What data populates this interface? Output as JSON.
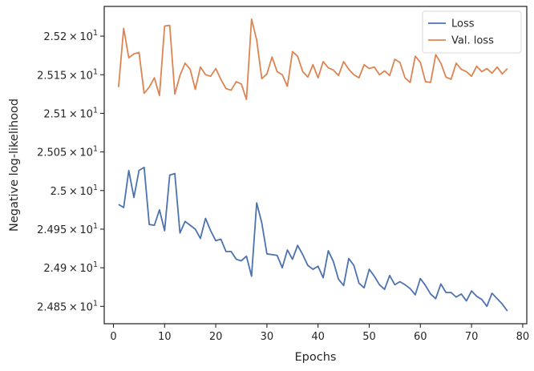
{
  "chart_data": {
    "type": "line",
    "title": "",
    "xlabel": "Epochs",
    "ylabel": "Negative log-likelihood",
    "xlim": [
      -1.8,
      80.8
    ],
    "ylim": [
      24.8275,
      25.2385
    ],
    "xticks": [
      0,
      10,
      20,
      30,
      40,
      50,
      60,
      70,
      80
    ],
    "xtick_labels": [
      "0",
      "10",
      "20",
      "30",
      "40",
      "50",
      "60",
      "70",
      "80"
    ],
    "yticks": [
      24.85,
      24.9,
      24.95,
      25.0,
      25.05,
      25.1,
      25.15,
      25.2
    ],
    "ytick_labels": [
      {
        "mantissa": "2.485",
        "exp": "1"
      },
      {
        "mantissa": "2.49",
        "exp": "1"
      },
      {
        "mantissa": "2.495",
        "exp": "1"
      },
      {
        "mantissa": "2.5",
        "exp": "1"
      },
      {
        "mantissa": "2.505",
        "exp": "1"
      },
      {
        "mantissa": "2.51",
        "exp": "1"
      },
      {
        "mantissa": "2.515",
        "exp": "1"
      },
      {
        "mantissa": "2.52",
        "exp": "1"
      }
    ],
    "tick_times": "×",
    "tick_base": "10",
    "legend_position": "top-right",
    "grid": false,
    "x": [
      1,
      2,
      3,
      4,
      5,
      6,
      7,
      8,
      9,
      10,
      11,
      12,
      13,
      14,
      15,
      16,
      17,
      18,
      19,
      20,
      21,
      22,
      23,
      24,
      25,
      26,
      27,
      28,
      29,
      30,
      31,
      32,
      33,
      34,
      35,
      36,
      37,
      38,
      39,
      40,
      41,
      42,
      43,
      44,
      45,
      46,
      47,
      48,
      49,
      50,
      51,
      52,
      53,
      54,
      55,
      56,
      57,
      58,
      59,
      60,
      61,
      62,
      63,
      64,
      65,
      66,
      67,
      68,
      69,
      70,
      71,
      72,
      73,
      74,
      75,
      76,
      77
    ],
    "series": [
      {
        "name": "Loss",
        "color": "#4c72b0",
        "values": [
          24.982,
          24.978,
          25.026,
          24.991,
          25.026,
          25.03,
          24.956,
          24.955,
          24.975,
          24.948,
          25.02,
          25.022,
          24.945,
          24.96,
          24.955,
          24.95,
          24.938,
          24.964,
          24.948,
          24.935,
          24.937,
          24.921,
          24.921,
          24.911,
          24.909,
          24.915,
          24.889,
          24.984,
          24.958,
          24.918,
          24.917,
          24.916,
          24.9,
          24.923,
          24.911,
          24.929,
          24.917,
          24.903,
          24.898,
          24.902,
          24.887,
          24.922,
          24.908,
          24.885,
          24.877,
          24.912,
          24.903,
          24.88,
          24.874,
          24.898,
          24.889,
          24.878,
          24.872,
          24.89,
          24.878,
          24.882,
          24.878,
          24.873,
          24.865,
          24.886,
          24.877,
          24.866,
          24.86,
          24.879,
          24.868,
          24.868,
          24.862,
          24.866,
          24.857,
          24.87,
          24.863,
          24.859,
          24.85,
          24.867,
          24.86,
          24.853,
          24.844
        ]
      },
      {
        "name": "Val. loss",
        "color": "#dd8452",
        "values": [
          25.134,
          25.21,
          25.172,
          25.177,
          25.179,
          25.126,
          25.134,
          25.146,
          25.123,
          25.213,
          25.214,
          25.125,
          25.149,
          25.165,
          25.157,
          25.131,
          25.16,
          25.15,
          25.148,
          25.158,
          25.144,
          25.132,
          25.13,
          25.141,
          25.138,
          25.118,
          25.222,
          25.195,
          25.145,
          25.151,
          25.173,
          25.154,
          25.15,
          25.135,
          25.18,
          25.174,
          25.154,
          25.147,
          25.163,
          25.146,
          25.167,
          25.159,
          25.156,
          25.149,
          25.167,
          25.157,
          25.15,
          25.146,
          25.163,
          25.158,
          25.16,
          25.15,
          25.155,
          25.149,
          25.17,
          25.166,
          25.146,
          25.14,
          25.174,
          25.166,
          25.141,
          25.14,
          25.176,
          25.165,
          25.147,
          25.144,
          25.165,
          25.157,
          25.154,
          25.148,
          25.161,
          25.154,
          25.158,
          25.152,
          25.16,
          25.151,
          25.158
        ]
      }
    ]
  }
}
